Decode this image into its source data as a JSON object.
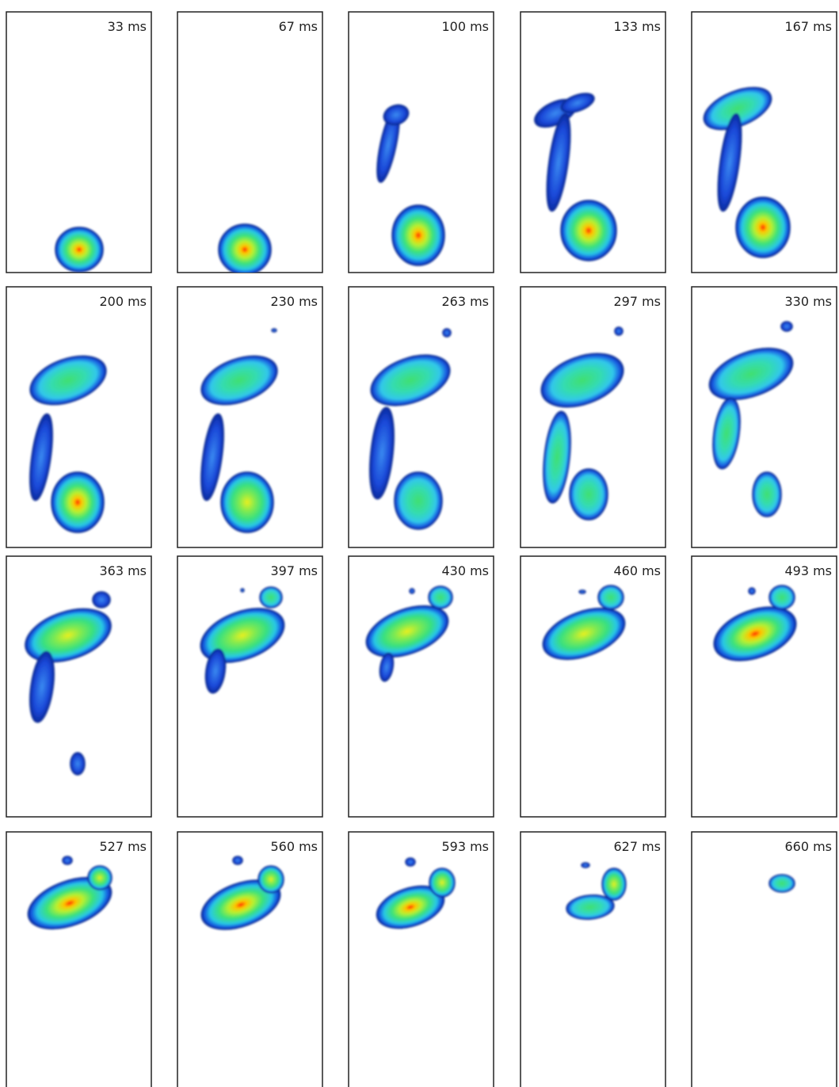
{
  "frames": [
    {
      "label": "33 ms"
    },
    {
      "label": "67 ms"
    },
    {
      "label": "100 ms"
    },
    {
      "label": "133 ms"
    },
    {
      "label": "167 ms"
    },
    {
      "label": "200 ms"
    },
    {
      "label": "230 ms"
    },
    {
      "label": "263 ms"
    },
    {
      "label": "297 ms"
    },
    {
      "label": "330 ms"
    },
    {
      "label": "363 ms"
    },
    {
      "label": "397 ms"
    },
    {
      "label": "430 ms"
    },
    {
      "label": "460 ms"
    },
    {
      "label": "493 ms"
    },
    {
      "label": "527 ms"
    },
    {
      "label": "560 ms"
    },
    {
      "label": "593 ms"
    },
    {
      "label": "627 ms"
    },
    {
      "label": "660 ms"
    }
  ]
}
